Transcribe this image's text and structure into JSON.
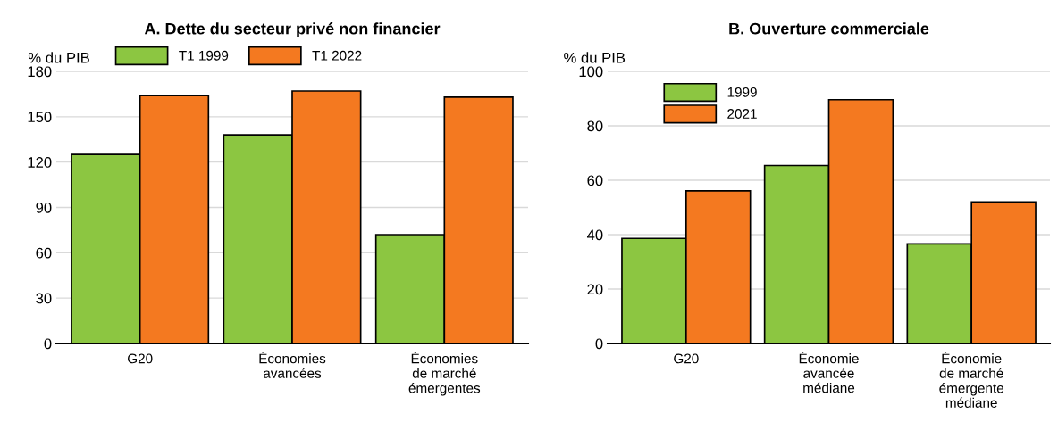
{
  "chart_data": [
    {
      "type": "bar",
      "title": "A. Dette du secteur privé non financier",
      "ylabel": "% du PIB",
      "categories": [
        "G20",
        "Économies\navancées",
        "Économies\nde marché\némergentes"
      ],
      "series": [
        {
          "name": "T1 1999",
          "color": "#8cc641",
          "values": [
            125,
            138,
            72
          ]
        },
        {
          "name": "T1 2022",
          "color": "#f47920",
          "values": [
            164,
            167,
            163
          ]
        }
      ],
      "ylim": [
        0,
        180
      ],
      "yticks": [
        0,
        30,
        60,
        90,
        120,
        150,
        180
      ],
      "grid": "y",
      "legend": "top"
    },
    {
      "type": "bar",
      "title": "B. Ouverture commerciale",
      "ylabel": "% du PIB",
      "categories": [
        "G20",
        "Économie\navancée\nmédiane",
        "Économie\nde marché\némergente\nmédiane"
      ],
      "series": [
        {
          "name": "1999",
          "color": "#8cc641",
          "values": [
            38.6,
            65.4,
            36.6
          ]
        },
        {
          "name": "2021",
          "color": "#f47920",
          "values": [
            56.1,
            89.6,
            52.0
          ]
        }
      ],
      "ylim": [
        0,
        100
      ],
      "yticks": [
        0,
        20,
        40,
        60,
        80,
        100
      ],
      "grid": "y",
      "legend": "top left"
    }
  ]
}
